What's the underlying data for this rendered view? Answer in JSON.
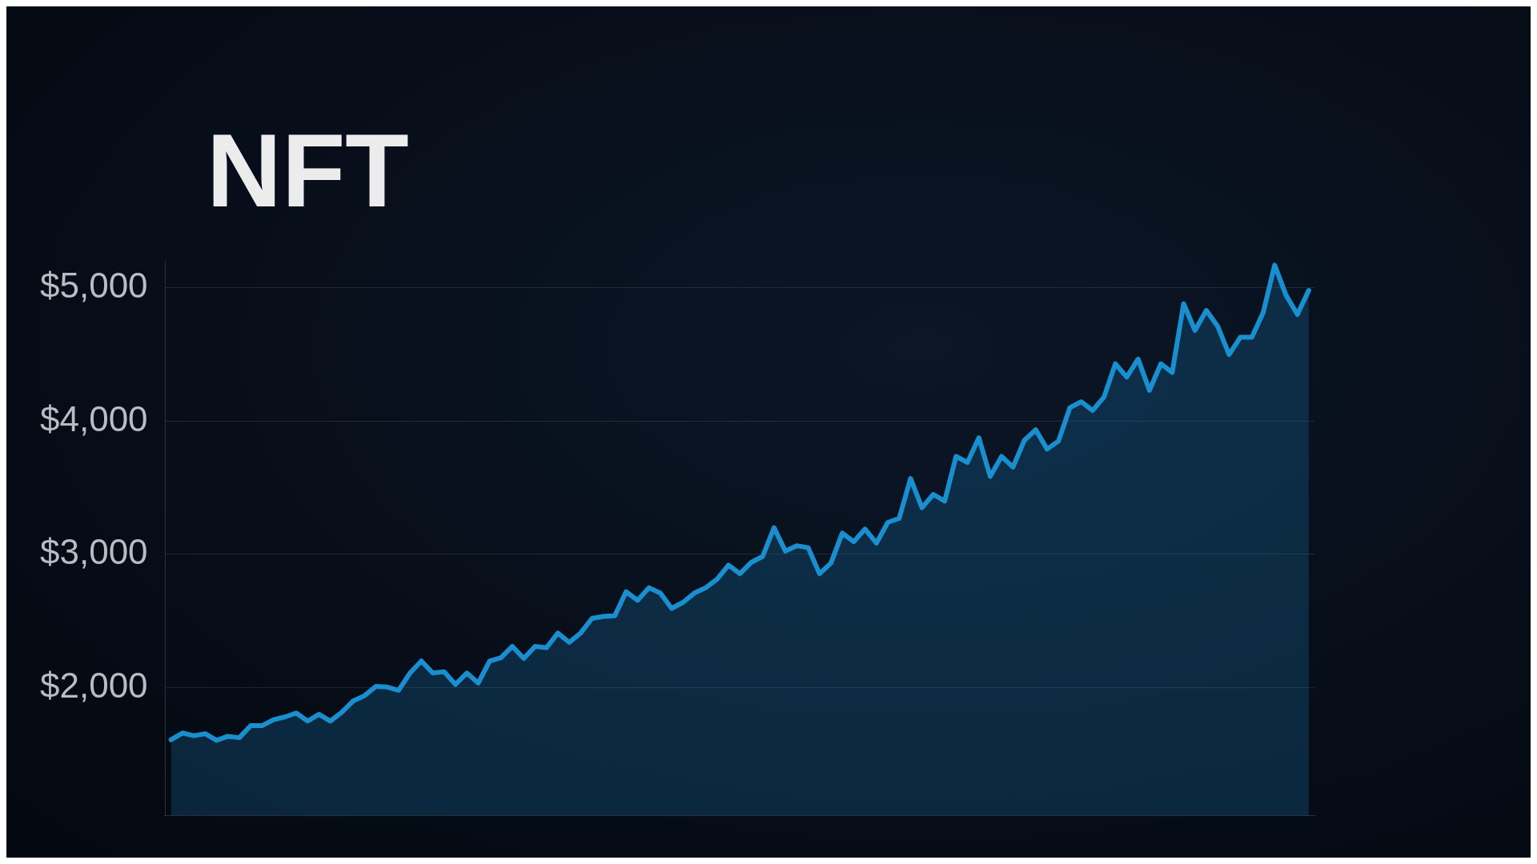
{
  "chart_data": {
    "type": "area",
    "title": "NFT",
    "categories": [
      null,
      null,
      null,
      null,
      null,
      null,
      null,
      null,
      null,
      null,
      null,
      null,
      null,
      null,
      null,
      null,
      null,
      null,
      null,
      null,
      null,
      null,
      null,
      null,
      null,
      null,
      null,
      null,
      null,
      null,
      null,
      null,
      null,
      null,
      null,
      null,
      null,
      null,
      null,
      null,
      null,
      null,
      null,
      null,
      null,
      null,
      null,
      null,
      null,
      null,
      null,
      null,
      null,
      null,
      null,
      null,
      null,
      null,
      null,
      null,
      null,
      null,
      null,
      null,
      null,
      null,
      null,
      null,
      null,
      null,
      null,
      null,
      null,
      null,
      null,
      null,
      null,
      null,
      null,
      null,
      null,
      null,
      null,
      null,
      null,
      null,
      null,
      null,
      null,
      null,
      null,
      null,
      null,
      null,
      null,
      null,
      null,
      null,
      null,
      null,
      null
    ],
    "series": [
      {
        "color": "#1a8fd0",
        "values": [
          1610,
          1660,
          1640,
          1655,
          1605,
          1635,
          1625,
          1715,
          1715,
          1760,
          1780,
          1810,
          1750,
          1800,
          1750,
          1815,
          1900,
          1940,
          2010,
          2005,
          1980,
          2110,
          2200,
          2110,
          2120,
          2025,
          2110,
          2035,
          2200,
          2225,
          2310,
          2220,
          2310,
          2300,
          2410,
          2340,
          2410,
          2520,
          2535,
          2540,
          2720,
          2655,
          2750,
          2710,
          2595,
          2640,
          2710,
          2750,
          2815,
          2920,
          2855,
          2940,
          2985,
          3200,
          3025,
          3065,
          3050,
          2855,
          2935,
          3160,
          3095,
          3190,
          3085,
          3240,
          3270,
          3570,
          3350,
          3450,
          3400,
          3735,
          3690,
          3875,
          3585,
          3735,
          3655,
          3855,
          3935,
          3790,
          3850,
          4100,
          4145,
          4080,
          4180,
          4430,
          4330,
          4465,
          4230,
          4430,
          4365,
          4880,
          4680,
          4830,
          4710,
          4500,
          4630,
          4630,
          4815,
          5170,
          4945,
          4800,
          4980
        ]
      }
    ],
    "ylim": [
      1040,
      5200
    ],
    "yticks": [
      {
        "value": 2000,
        "label": "$2,000"
      },
      {
        "value": 3000,
        "label": "$3,000"
      },
      {
        "value": 4000,
        "label": "$4,000"
      },
      {
        "value": 5000,
        "label": "$5,000"
      }
    ],
    "grid": "y",
    "legend": false,
    "tick_labels": "y",
    "marker": "none",
    "line_style": "solid"
  }
}
